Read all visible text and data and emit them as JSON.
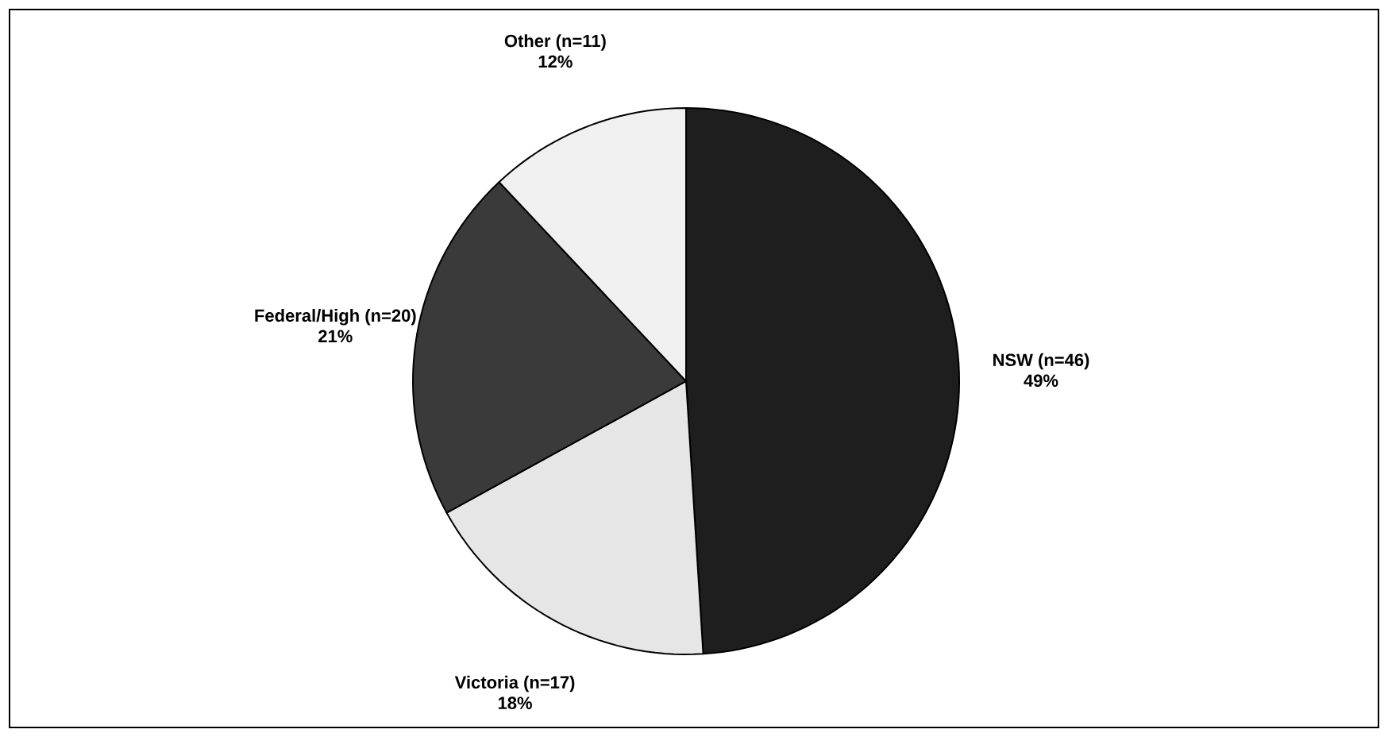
{
  "chart_data": {
    "type": "pie",
    "categories": [
      "NSW (n=46)",
      "Victoria (n=17)",
      "Federal/High (n=20)",
      "Other (n=11)"
    ],
    "values": [
      49,
      18,
      21,
      12
    ],
    "value_labels": [
      "49%",
      "18%",
      "21%",
      "12%"
    ],
    "colors": [
      "#1e1e1e",
      "#e6e6e6",
      "#3a3a3a",
      "#f0f0f0"
    ]
  }
}
